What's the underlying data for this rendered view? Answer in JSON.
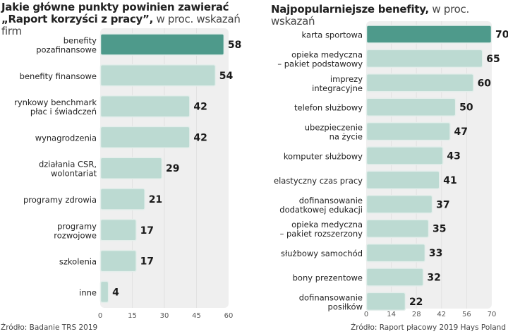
{
  "chart_data": [
    {
      "type": "bar",
      "orientation": "horizontal",
      "title": "Jakie główne punkty powinien zawierać „Raport korzyści z pracy”,",
      "title_bold_lines": [
        "Jakie główne punkty powinien zawierać",
        "„Raport korzyści z pracy”,"
      ],
      "subtitle": "w proc. wskazań firm",
      "categories": [
        [
          "benefity",
          "pozafinansowe"
        ],
        [
          "benefity finansowe"
        ],
        [
          "rynkowy benchmark",
          "płac i świadczeń"
        ],
        [
          "wynagrodzenia"
        ],
        [
          "działania CSR,",
          "wolontariat"
        ],
        [
          "programy zdrowia"
        ],
        [
          "programy",
          "rozwojowe"
        ],
        [
          "szkolenia"
        ],
        [
          "inne"
        ]
      ],
      "values": [
        58,
        54,
        42,
        42,
        29,
        21,
        17,
        17,
        4
      ],
      "highlight_index": 0,
      "xlim": [
        0,
        60
      ],
      "xticks": [
        0,
        15,
        30,
        45,
        60
      ],
      "xlabel": "",
      "ylabel": "",
      "grid": true,
      "source": "Źródło: Badanie TRS 2019"
    },
    {
      "type": "bar",
      "orientation": "horizontal",
      "title": "Najpopularniejsze benefity,",
      "title_bold_lines": [
        "Najpopularniejsze benefity,"
      ],
      "subtitle": "w proc. wskazań",
      "categories": [
        [
          "karta sportowa"
        ],
        [
          "opieka medyczna",
          "– pakiet podstawowy"
        ],
        [
          "imprezy",
          "integracyjne"
        ],
        [
          "telefon służbowy"
        ],
        [
          "ubezpieczenie",
          "na życie"
        ],
        [
          "komputer służbowy"
        ],
        [
          "elastyczny czas pracy"
        ],
        [
          "dofinansowanie",
          "dodatkowej edukacji"
        ],
        [
          "opieka medyczna",
          "– pakiet rozszerzony"
        ],
        [
          "służbowy samochód"
        ],
        [
          "bony prezentowe"
        ],
        [
          "dofinansowanie",
          "posiłków"
        ]
      ],
      "values": [
        70,
        65,
        60,
        50,
        47,
        43,
        41,
        37,
        35,
        33,
        32,
        22
      ],
      "highlight_index": 0,
      "xlim": [
        0,
        70
      ],
      "xticks": [
        0,
        14,
        28,
        42,
        56,
        70
      ],
      "xlabel": "",
      "ylabel": "",
      "grid": true,
      "source": "Źródło: Raport płacowy 2019 Hays Poland"
    }
  ],
  "colors": {
    "highlight_bar": "#4e9a8b",
    "regular_bar": "#bcdad2",
    "bar_outline": "#e4eeeb",
    "panel_bg": "#efefef",
    "gridline": "#e2e2e2"
  }
}
